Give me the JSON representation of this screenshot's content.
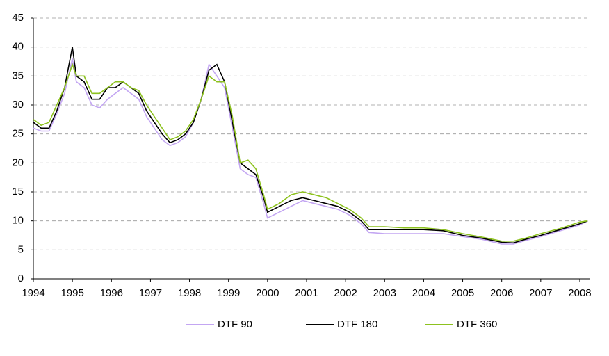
{
  "chart_data": {
    "type": "line",
    "x": [
      1994,
      1994.2,
      1994.4,
      1994.6,
      1994.8,
      1995,
      1995.1,
      1995.3,
      1995.5,
      1995.7,
      1995.9,
      1996.1,
      1996.3,
      1996.5,
      1996.7,
      1996.9,
      1997.1,
      1997.3,
      1997.5,
      1997.7,
      1997.9,
      1998.1,
      1998.3,
      1998.5,
      1998.7,
      1998.9,
      1999.1,
      1999.3,
      1999.5,
      1999.7,
      1999.9,
      2000,
      2000.3,
      2000.6,
      2000.9,
      2001.2,
      2001.5,
      2001.8,
      2002.1,
      2002.4,
      2002.6,
      2003,
      2003.5,
      2004,
      2004.5,
      2005,
      2005.5,
      2006,
      2006.3,
      2006.6,
      2007,
      2007.5,
      2008,
      2008.2
    ],
    "series": [
      {
        "name": "DTF 90",
        "color": "#c3a6f2",
        "values": [
          26,
          25.5,
          25.5,
          28.5,
          32,
          38,
          34,
          33,
          30,
          29.5,
          31,
          32,
          33,
          32,
          31,
          28,
          26,
          24,
          23,
          23.5,
          24.5,
          27,
          31,
          37,
          35,
          33,
          26,
          19,
          18,
          17.5,
          13,
          10.5,
          11.5,
          12.5,
          13.5,
          13,
          12.5,
          12,
          11,
          9.5,
          8,
          7.8,
          7.8,
          7.8,
          7.8,
          7.3,
          6.8,
          6,
          6,
          6.6,
          7.3,
          8.3,
          9.3,
          10
        ]
      },
      {
        "name": "DTF 180",
        "color": "#000000",
        "values": [
          27,
          26,
          26,
          29,
          33,
          40,
          35,
          34,
          31,
          31,
          33,
          33,
          34,
          33,
          32,
          29,
          27,
          25,
          23.5,
          24,
          25,
          27,
          31,
          36,
          37,
          34,
          27,
          20,
          19,
          18,
          14,
          11.5,
          12.5,
          13.5,
          14,
          13.5,
          13,
          12.5,
          11.5,
          10,
          8.5,
          8.5,
          8.5,
          8.5,
          8.3,
          7.5,
          7,
          6.3,
          6.2,
          6.8,
          7.5,
          8.5,
          9.5,
          10
        ]
      },
      {
        "name": "DTF 360",
        "color": "#8dc21f",
        "values": [
          27.5,
          26.5,
          27,
          30,
          33,
          37,
          35,
          35,
          32,
          32,
          33,
          34,
          34,
          33,
          32.5,
          30,
          28,
          26,
          24,
          24.5,
          25.5,
          27.5,
          31,
          35,
          34,
          34,
          28,
          20,
          20.5,
          19,
          14.5,
          12,
          13,
          14.5,
          15,
          14.5,
          14,
          13,
          12,
          10.5,
          9,
          9,
          8.8,
          8.8,
          8.5,
          7.8,
          7.2,
          6.5,
          6.5,
          7,
          7.8,
          8.7,
          9.8,
          10
        ]
      }
    ],
    "xlim": [
      1994,
      2008.25
    ],
    "xticks": [
      1994,
      1995,
      1996,
      1997,
      1998,
      1999,
      2000,
      2001,
      2002,
      2003,
      2004,
      2005,
      2006,
      2007,
      2008
    ],
    "ylim": [
      0,
      45
    ],
    "yticks": [
      0,
      5,
      10,
      15,
      20,
      25,
      30,
      35,
      40,
      45
    ],
    "grid": true,
    "legend": "bottom"
  }
}
